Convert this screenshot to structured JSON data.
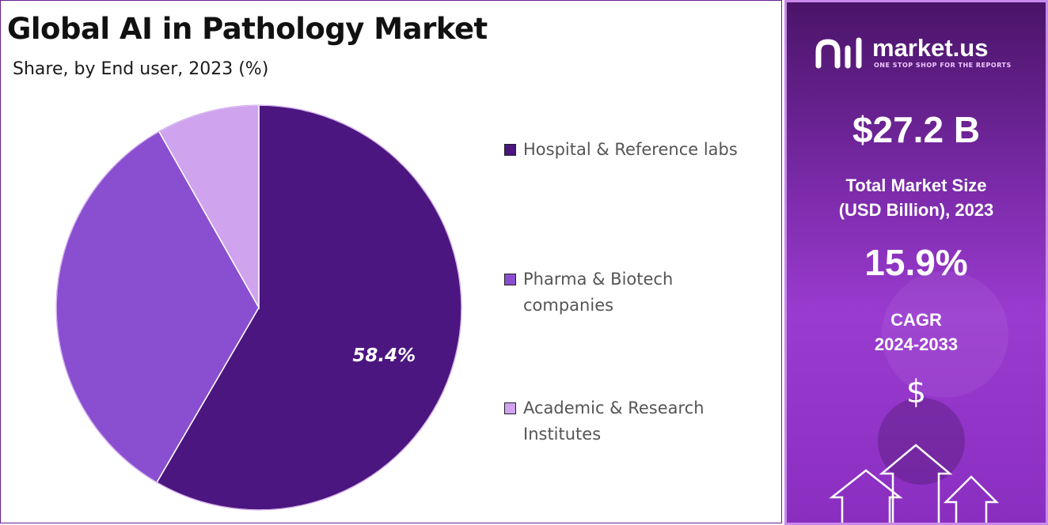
{
  "header": {
    "title": "Global AI in Pathology Market",
    "subtitle": "Share, by End user, 2023 (%)"
  },
  "chart_data": {
    "type": "pie",
    "categories": [
      "Hospital & Reference labs",
      "Pharma & Biotech\ncompanies",
      "Academic & Research\nInstitutes"
    ],
    "values": [
      58.4,
      33.4,
      8.2
    ],
    "colors": [
      "#4b1680",
      "#8a4fd0",
      "#cfa3ee"
    ],
    "data_labels": [
      "58.4%",
      "",
      ""
    ],
    "start_angle_deg": 0,
    "direction": "clockwise",
    "legend_position": "right"
  },
  "sidebar": {
    "brand_name": "market.us",
    "brand_tagline": "ONE STOP SHOP FOR THE REPORTS",
    "market_size_value": "$27.2 B",
    "market_size_label": "Total Market Size\n(USD Billion), 2023",
    "cagr_value": "15.9%",
    "cagr_label": "CAGR\n2024-2033",
    "currency_symbol": "$",
    "icons": [
      "market-us-logo-icon",
      "up-arrow-icon"
    ]
  }
}
